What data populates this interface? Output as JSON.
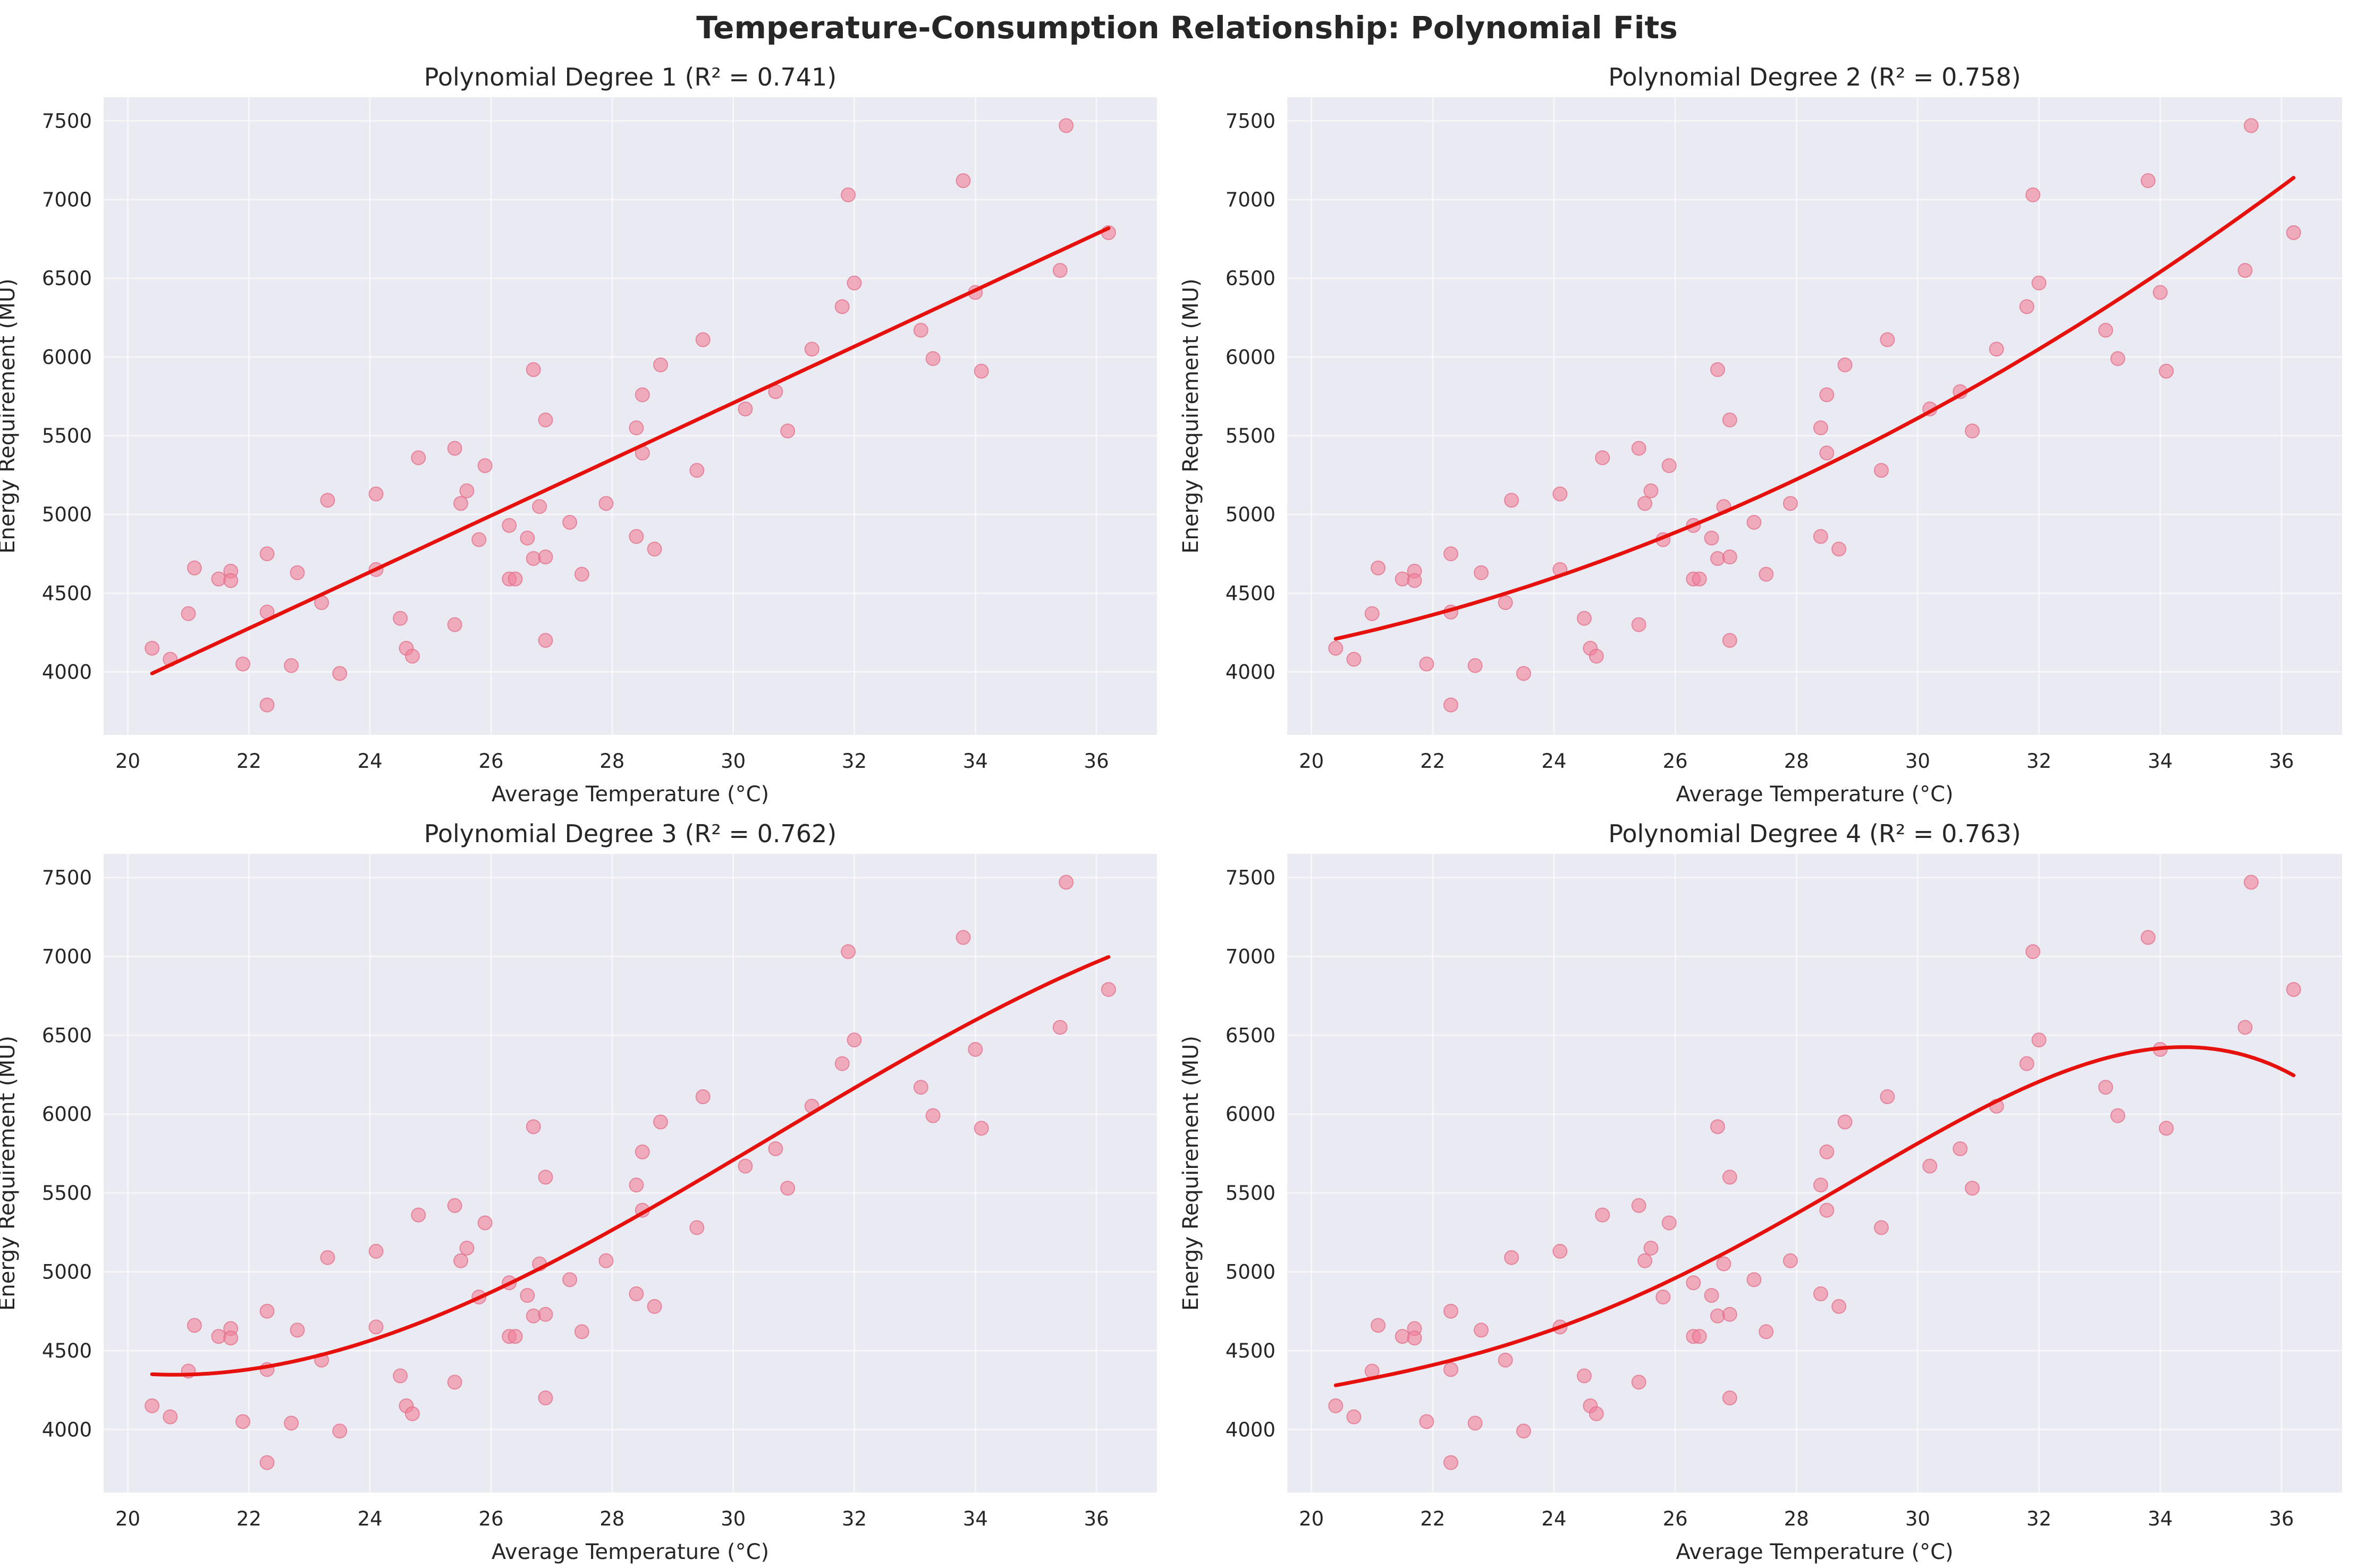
{
  "figure": {
    "title": "Temperature-Consumption Relationship: Polynomial Fits"
  },
  "chart_data": [
    {
      "type": "scatter",
      "title": "Polynomial Degree 1 (R² = 0.741)",
      "degree": 1,
      "r2": 0.741,
      "xlabel": "Average Temperature (°C)",
      "ylabel": "Energy Requirement (MU)",
      "xlim": [
        19.6,
        37.0
      ],
      "ylim": [
        3600,
        7650
      ],
      "xticks": [
        20,
        22,
        24,
        26,
        28,
        30,
        32,
        34,
        36
      ],
      "yticks": [
        4000,
        4500,
        5000,
        5500,
        6000,
        6500,
        7000,
        7500
      ],
      "grid": true,
      "fit_coefficients": [
        3990,
        179.0
      ],
      "fit_x0": 20.4,
      "fit_range": [
        20.4,
        36.2
      ],
      "fit_color": "#e6110d",
      "point_color": "#f27f97"
    },
    {
      "type": "scatter",
      "title": "Polynomial Degree 2 (R² = 0.758)",
      "degree": 2,
      "r2": 0.758,
      "xlabel": "Average Temperature (°C)",
      "ylabel": "Energy Requirement (MU)",
      "xlim": [
        19.6,
        37.0
      ],
      "ylim": [
        3600,
        7650
      ],
      "xticks": [
        20,
        22,
        24,
        26,
        28,
        30,
        32,
        34,
        36
      ],
      "yticks": [
        4000,
        4500,
        5000,
        5500,
        6000,
        6500,
        7000,
        7500
      ],
      "grid": true,
      "fit_coefficients": [
        4210,
        85.0,
        6.35
      ],
      "fit_x0": 20.4,
      "fit_range": [
        20.4,
        36.2
      ],
      "fit_color": "#e6110d",
      "point_color": "#f27f97"
    },
    {
      "type": "scatter",
      "title": "Polynomial Degree 3 (R² = 0.762)",
      "degree": 3,
      "r2": 0.762,
      "xlabel": "Average Temperature (°C)",
      "ylabel": "Energy Requirement (MU)",
      "xlim": [
        19.6,
        37.0
      ],
      "ylim": [
        3600,
        7650
      ],
      "xticks": [
        20,
        22,
        24,
        26,
        28,
        30,
        32,
        34,
        36
      ],
      "yticks": [
        4000,
        4500,
        5000,
        5500,
        6000,
        6500,
        7000,
        7500
      ],
      "grid": true,
      "fit_coefficients": [
        4350,
        -17.0,
        24.0,
        -0.78
      ],
      "fit_x0": 20.4,
      "fit_range": [
        20.4,
        36.2
      ],
      "fit_color": "#e6110d",
      "point_color": "#f27f97"
    },
    {
      "type": "scatter",
      "title": "Polynomial Degree 4 (R² = 0.763)",
      "degree": 4,
      "r2": 0.763,
      "xlabel": "Average Temperature (°C)",
      "ylabel": "Energy Requirement (MU)",
      "xlim": [
        19.6,
        37.0
      ],
      "ylim": [
        3600,
        7650
      ],
      "xticks": [
        20,
        22,
        24,
        26,
        28,
        30,
        32,
        34,
        36
      ],
      "yticks": [
        4000,
        4500,
        5000,
        5500,
        6000,
        6500,
        7000,
        7500
      ],
      "grid": true,
      "fit_coefficients": [
        4280,
        72.0,
        3.0,
        1.6,
        -0.1
      ],
      "fit_x0": 20.4,
      "fit_range": [
        20.4,
        36.2
      ],
      "fit_color": "#e6110d",
      "point_color": "#f27f97"
    }
  ],
  "points": {
    "x": [
      20.4,
      20.7,
      21.0,
      21.1,
      21.5,
      21.7,
      21.7,
      21.9,
      22.3,
      22.3,
      22.3,
      22.7,
      22.8,
      23.2,
      23.3,
      23.5,
      24.1,
      24.1,
      24.5,
      24.6,
      24.7,
      24.8,
      25.4,
      25.4,
      25.5,
      25.6,
      25.8,
      25.9,
      26.3,
      26.3,
      26.4,
      26.6,
      26.7,
      26.7,
      26.8,
      26.9,
      26.9,
      26.9,
      27.3,
      27.5,
      27.9,
      28.4,
      28.4,
      28.5,
      28.5,
      28.7,
      28.8,
      29.4,
      29.5,
      30.2,
      30.7,
      30.9,
      31.3,
      31.8,
      31.9,
      32.0,
      33.1,
      33.3,
      33.8,
      34.0,
      34.1,
      35.4,
      35.5,
      36.2
    ],
    "y": [
      4150,
      4080,
      4370,
      4660,
      4590,
      4640,
      4580,
      4050,
      4750,
      4380,
      3790,
      4040,
      4630,
      4440,
      5090,
      3990,
      5130,
      4650,
      4340,
      4150,
      4100,
      5360,
      5420,
      4300,
      5070,
      5150,
      4840,
      5310,
      4930,
      4590,
      4590,
      4850,
      5920,
      4720,
      5050,
      5600,
      4730,
      4200,
      4950,
      4620,
      5070,
      5550,
      4860,
      5760,
      5390,
      4780,
      5950,
      5280,
      6110,
      5670,
      5780,
      5530,
      6050,
      6320,
      7030,
      6470,
      6170,
      5990,
      7120,
      6410,
      5910,
      6550,
      7470,
      6790
    ]
  }
}
